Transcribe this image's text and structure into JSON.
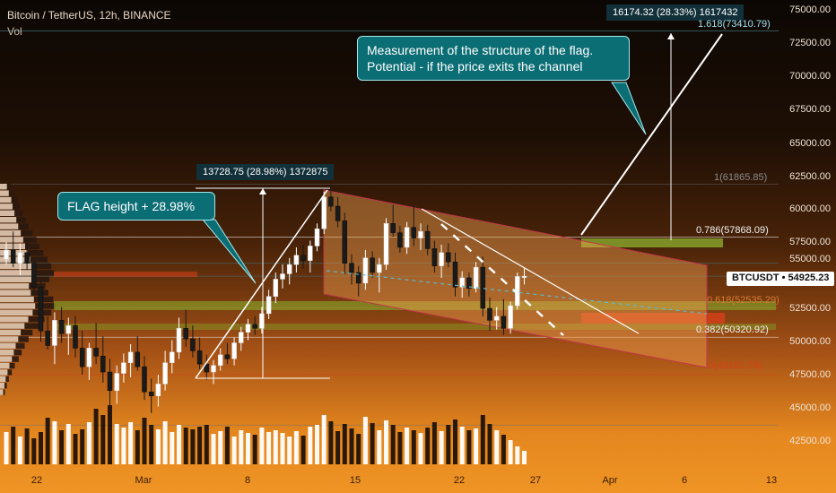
{
  "header": {
    "title": "Bitcoin / TetherUS, 12h, BINANCE",
    "volume_label": "Vol"
  },
  "price_axis": {
    "ticks": [
      "75000.00",
      "72500.00",
      "70000.00",
      "67500.00",
      "65000.00",
      "62500.00",
      "60000.00",
      "57500.00",
      "55000.00",
      "52500.00",
      "50000.00",
      "47500.00",
      "45000.00",
      "42500.00"
    ]
  },
  "time_axis": {
    "ticks": [
      "22",
      "Mar",
      "8",
      "15",
      "22",
      "27",
      "Apr",
      "6",
      "13"
    ]
  },
  "last_price": {
    "symbol": "BTCUSDT",
    "value": "54925.23"
  },
  "annotations": {
    "flag_height": "FLAG height + 28.98%",
    "measurement_line1": "Measurement of the structure of the flag.",
    "measurement_line2": "Potential - if the price exits the channel"
  },
  "measure_labels": {
    "left": "13728.75 (28.98%) 1372875",
    "right": "16174.32 (28.33%) 1617432"
  },
  "fib_labels": {
    "f1618": "1.618(73410.79)",
    "f1": "1(61865.85)",
    "f786": "0.786(57868.09)",
    "f618": "0.618(52535.29)",
    "f382": "0.382(50320.92)",
    "f0": "0(46161.79)"
  },
  "colors": {
    "accent_teal": "#0c6e75",
    "up_candle": "#ffffff",
    "down_candle": "#1a1a1a",
    "channel_fill": "#f2a050",
    "fib_green": "#86a12a",
    "fib_red": "#d8401a"
  },
  "chart_data": {
    "type": "candlestick",
    "title": "Bitcoin / TetherUS, 12h, BINANCE",
    "ylim": [
      41000,
      76000
    ],
    "candles": [
      {
        "o": 56200,
        "h": 57500,
        "l": 55800,
        "c": 56900
      },
      {
        "o": 56900,
        "h": 58300,
        "l": 55600,
        "c": 55900
      },
      {
        "o": 55900,
        "h": 57400,
        "l": 55000,
        "c": 56700
      },
      {
        "o": 56700,
        "h": 57700,
        "l": 55400,
        "c": 55900
      },
      {
        "o": 55900,
        "h": 56200,
        "l": 53600,
        "c": 54100
      },
      {
        "o": 54100,
        "h": 54600,
        "l": 50000,
        "c": 50800
      },
      {
        "o": 50800,
        "h": 51900,
        "l": 49400,
        "c": 49700
      },
      {
        "o": 49700,
        "h": 52200,
        "l": 48300,
        "c": 51600
      },
      {
        "o": 51600,
        "h": 52600,
        "l": 49900,
        "c": 50600
      },
      {
        "o": 50600,
        "h": 51800,
        "l": 49000,
        "c": 51200
      },
      {
        "o": 51200,
        "h": 51900,
        "l": 48800,
        "c": 49500
      },
      {
        "o": 49500,
        "h": 50800,
        "l": 47500,
        "c": 48100
      },
      {
        "o": 48100,
        "h": 49900,
        "l": 47100,
        "c": 49500
      },
      {
        "o": 49500,
        "h": 51400,
        "l": 48300,
        "c": 48900
      },
      {
        "o": 48900,
        "h": 50400,
        "l": 46900,
        "c": 47700
      },
      {
        "o": 47700,
        "h": 48700,
        "l": 45100,
        "c": 46300
      },
      {
        "o": 46300,
        "h": 48200,
        "l": 45300,
        "c": 47600
      },
      {
        "o": 47600,
        "h": 49100,
        "l": 46900,
        "c": 48400
      },
      {
        "o": 48400,
        "h": 49800,
        "l": 47300,
        "c": 49200
      },
      {
        "o": 49200,
        "h": 50400,
        "l": 47800,
        "c": 48100
      },
      {
        "o": 48100,
        "h": 48900,
        "l": 45600,
        "c": 46200
      },
      {
        "o": 46200,
        "h": 47200,
        "l": 44600,
        "c": 45900
      },
      {
        "o": 45900,
        "h": 47500,
        "l": 45100,
        "c": 46800
      },
      {
        "o": 46800,
        "h": 49300,
        "l": 46300,
        "c": 48400
      },
      {
        "o": 48400,
        "h": 50100,
        "l": 47600,
        "c": 49200
      },
      {
        "o": 49200,
        "h": 51800,
        "l": 48700,
        "c": 51000
      },
      {
        "o": 51000,
        "h": 52400,
        "l": 49600,
        "c": 50200
      },
      {
        "o": 50200,
        "h": 51200,
        "l": 48800,
        "c": 49300
      },
      {
        "o": 49300,
        "h": 50300,
        "l": 47900,
        "c": 48300
      },
      {
        "o": 48300,
        "h": 49000,
        "l": 47100,
        "c": 47700
      },
      {
        "o": 47700,
        "h": 48600,
        "l": 46800,
        "c": 48200
      },
      {
        "o": 48200,
        "h": 49500,
        "l": 47800,
        "c": 49000
      },
      {
        "o": 49000,
        "h": 49900,
        "l": 48300,
        "c": 48700
      },
      {
        "o": 48700,
        "h": 50300,
        "l": 48200,
        "c": 49900
      },
      {
        "o": 49900,
        "h": 51100,
        "l": 49300,
        "c": 50700
      },
      {
        "o": 50700,
        "h": 51700,
        "l": 50100,
        "c": 51300
      },
      {
        "o": 51300,
        "h": 51900,
        "l": 50500,
        "c": 51000
      },
      {
        "o": 51000,
        "h": 52600,
        "l": 50600,
        "c": 52100
      },
      {
        "o": 52100,
        "h": 53900,
        "l": 51700,
        "c": 53400
      },
      {
        "o": 53400,
        "h": 55200,
        "l": 52900,
        "c": 54700
      },
      {
        "o": 54700,
        "h": 55800,
        "l": 54000,
        "c": 55100
      },
      {
        "o": 55100,
        "h": 56300,
        "l": 54300,
        "c": 55800
      },
      {
        "o": 55800,
        "h": 57100,
        "l": 55200,
        "c": 56500
      },
      {
        "o": 56500,
        "h": 57300,
        "l": 55500,
        "c": 56100
      },
      {
        "o": 56100,
        "h": 57600,
        "l": 55200,
        "c": 57200
      },
      {
        "o": 57200,
        "h": 58900,
        "l": 56800,
        "c": 58500
      },
      {
        "o": 58500,
        "h": 61300,
        "l": 58100,
        "c": 60900
      },
      {
        "o": 60900,
        "h": 61865,
        "l": 59800,
        "c": 60200
      },
      {
        "o": 60200,
        "h": 60900,
        "l": 58600,
        "c": 59100
      },
      {
        "o": 59100,
        "h": 59700,
        "l": 55100,
        "c": 55900
      },
      {
        "o": 55900,
        "h": 56600,
        "l": 54300,
        "c": 55200
      },
      {
        "o": 55200,
        "h": 55700,
        "l": 53400,
        "c": 54400
      },
      {
        "o": 54400,
        "h": 56900,
        "l": 53900,
        "c": 56300
      },
      {
        "o": 56300,
        "h": 56800,
        "l": 54800,
        "c": 55200
      },
      {
        "o": 55200,
        "h": 56300,
        "l": 53700,
        "c": 55800
      },
      {
        "o": 55800,
        "h": 59300,
        "l": 55400,
        "c": 58900
      },
      {
        "o": 58900,
        "h": 60300,
        "l": 57900,
        "c": 58200
      },
      {
        "o": 58200,
        "h": 58700,
        "l": 56700,
        "c": 57100
      },
      {
        "o": 57100,
        "h": 59000,
        "l": 56600,
        "c": 58600
      },
      {
        "o": 58600,
        "h": 60200,
        "l": 57200,
        "c": 57800
      },
      {
        "o": 57800,
        "h": 58900,
        "l": 56900,
        "c": 58300
      },
      {
        "o": 58300,
        "h": 58800,
        "l": 56500,
        "c": 57000
      },
      {
        "o": 57000,
        "h": 57600,
        "l": 55200,
        "c": 55700
      },
      {
        "o": 55700,
        "h": 57300,
        "l": 54800,
        "c": 56700
      },
      {
        "o": 56700,
        "h": 57400,
        "l": 55600,
        "c": 56000
      },
      {
        "o": 56000,
        "h": 56700,
        "l": 53400,
        "c": 54100
      },
      {
        "o": 54100,
        "h": 55300,
        "l": 53300,
        "c": 54800
      },
      {
        "o": 54800,
        "h": 55200,
        "l": 53400,
        "c": 54000
      },
      {
        "o": 54000,
        "h": 56000,
        "l": 53700,
        "c": 55600
      },
      {
        "o": 55600,
        "h": 56400,
        "l": 51900,
        "c": 52500
      },
      {
        "o": 52500,
        "h": 53300,
        "l": 50800,
        "c": 51600
      },
      {
        "o": 51600,
        "h": 52600,
        "l": 50900,
        "c": 51900
      },
      {
        "o": 51900,
        "h": 53200,
        "l": 50500,
        "c": 51000
      },
      {
        "o": 51000,
        "h": 53000,
        "l": 50600,
        "c": 52700
      },
      {
        "o": 52700,
        "h": 55200,
        "l": 52400,
        "c": 54900
      },
      {
        "o": 54900,
        "h": 55500,
        "l": 54300,
        "c": 54925
      }
    ],
    "volume": [
      0.36,
      0.42,
      0.31,
      0.4,
      0.29,
      0.36,
      0.52,
      0.48,
      0.38,
      0.45,
      0.34,
      0.39,
      0.47,
      0.62,
      0.55,
      0.66,
      0.45,
      0.41,
      0.47,
      0.38,
      0.52,
      0.44,
      0.39,
      0.48,
      0.36,
      0.44,
      0.41,
      0.39,
      0.42,
      0.44,
      0.34,
      0.37,
      0.42,
      0.31,
      0.38,
      0.35,
      0.33,
      0.41,
      0.36,
      0.38,
      0.35,
      0.31,
      0.37,
      0.32,
      0.42,
      0.44,
      0.55,
      0.48,
      0.37,
      0.45,
      0.4,
      0.34,
      0.53,
      0.46,
      0.38,
      0.49,
      0.44,
      0.36,
      0.41,
      0.38,
      0.35,
      0.41,
      0.47,
      0.37,
      0.44,
      0.5,
      0.42,
      0.38,
      0.4,
      0.55,
      0.45,
      0.38,
      0.33,
      0.27,
      0.2,
      0.15
    ],
    "fib_levels": [
      {
        "ratio": 1.618,
        "price": 73410.79
      },
      {
        "ratio": 1,
        "price": 61865.85
      },
      {
        "ratio": 0.786,
        "price": 57868.09
      },
      {
        "ratio": 0.618,
        "price": 52535.29
      },
      {
        "ratio": 0.382,
        "price": 50320.92
      },
      {
        "ratio": 0,
        "price": 46161.79
      }
    ],
    "price_measurements": [
      {
        "change": 13728.75,
        "percent": 28.98
      },
      {
        "change": 16174.32,
        "percent": 28.33
      }
    ]
  }
}
